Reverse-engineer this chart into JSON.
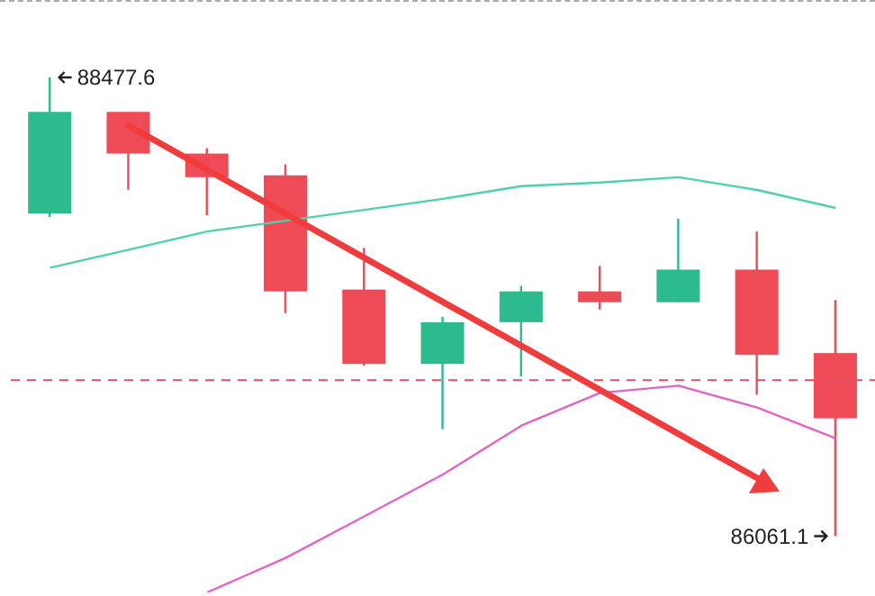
{
  "chart_data": {
    "type": "candlestick",
    "categories": [
      null,
      null,
      null,
      null,
      null,
      null,
      null,
      null,
      null,
      null,
      null
    ],
    "ohlc": [
      [
        87761.3,
        88477.6,
        87742.2,
        88296.1
      ],
      [
        88296.1,
        88296.1,
        87885.4,
        88076.5
      ],
      [
        88076.5,
        88105.1,
        87751.7,
        87952.3
      ],
      [
        87961.9,
        88019.2,
        87236.0,
        87350.6
      ],
      [
        87360.1,
        87579.8,
        86959.0,
        86968.5
      ],
      [
        86968.5,
        87216.9,
        86624.7,
        87188.2
      ],
      [
        87188.2,
        87379.2,
        86901.7,
        87350.6
      ],
      [
        87350.6,
        87484.3,
        87255.1,
        87293.3
      ],
      [
        87293.3,
        87732.6,
        87293.3,
        87465.2
      ],
      [
        87465.2,
        87665.8,
        86806.2,
        87016.3
      ],
      [
        87025.8,
        87305.0,
        86061.1,
        86682.0
      ]
    ],
    "colors": [
      "#2bbb8f",
      "#ef4b57",
      "#ef4b57",
      "#ef4b57",
      "#ef4b57",
      "#2bbb8f",
      "#2bbb8f",
      "#ef4b57",
      "#2bbb8f",
      "#ef4b57",
      "#ef4b57"
    ],
    "series": [
      {
        "type": "line",
        "color": "#4fd1ae",
        "values": [
          87475,
          87570,
          87666,
          87723,
          87780,
          87838,
          87905,
          87924,
          87952,
          87885,
          87790
        ]
      },
      {
        "type": "line",
        "color": "#e264c4",
        "values": [
          null,
          null,
          85765,
          85947,
          86166,
          86386,
          86644,
          86816,
          86854,
          86739,
          86577
        ]
      }
    ],
    "ref_lines": [
      {
        "axis": "y",
        "value": 86882.6,
        "color": "#d9536a",
        "line_style": "dashed"
      }
    ],
    "annotations": [
      "88477.6",
      "86061.1"
    ],
    "tick_labels": false,
    "grid": false
  }
}
